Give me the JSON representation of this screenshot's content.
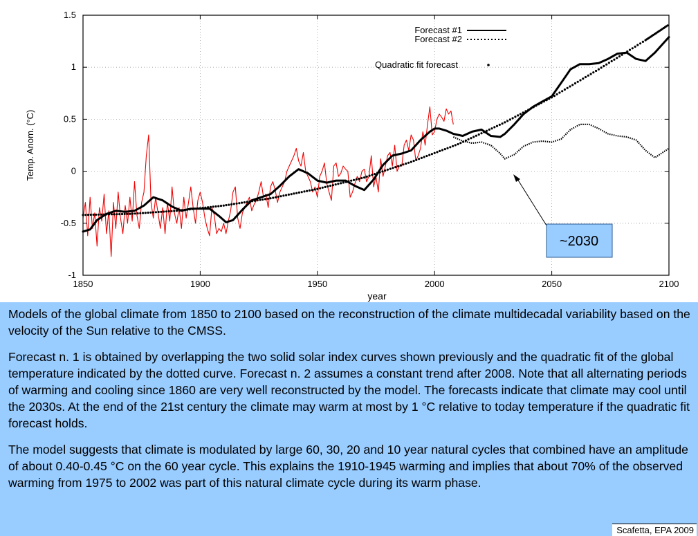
{
  "chart_data": {
    "type": "line",
    "xlabel": "year",
    "ylabel": "Temp. Anom. (°C)",
    "xlim": [
      1850,
      2100
    ],
    "ylim": [
      -1,
      1.5
    ],
    "xticks": [
      1850,
      1900,
      1950,
      2000,
      2050,
      2100
    ],
    "yticks": [
      -1,
      -0.5,
      0,
      0.5,
      1,
      1.5
    ],
    "grid": true,
    "legend_position": "top-right",
    "legend": [
      "Forecast #1",
      "Forecast #2",
      "Quadratic fit forecast"
    ],
    "series": [
      {
        "name": "Forecast #1",
        "style": "solid",
        "x": [
          1850,
          1853,
          1856,
          1860,
          1864,
          1868,
          1872,
          1876,
          1880,
          1884,
          1888,
          1892,
          1896,
          1900,
          1904,
          1908,
          1911,
          1914,
          1918,
          1922,
          1926,
          1930,
          1934,
          1938,
          1942,
          1946,
          1950,
          1954,
          1958,
          1962,
          1966,
          1970,
          1974,
          1978,
          1982,
          1986,
          1990,
          1994,
          1998,
          2000,
          2002,
          2005,
          2008,
          2012,
          2016,
          2020,
          2024,
          2028,
          2030,
          2034,
          2038,
          2042,
          2046,
          2050,
          2054,
          2058,
          2062,
          2066,
          2070,
          2074,
          2078,
          2082,
          2086,
          2090,
          2094,
          2098,
          2100
        ],
        "y": [
          -0.58,
          -0.56,
          -0.47,
          -0.41,
          -0.38,
          -0.39,
          -0.38,
          -0.33,
          -0.25,
          -0.28,
          -0.34,
          -0.38,
          -0.36,
          -0.36,
          -0.36,
          -0.43,
          -0.49,
          -0.47,
          -0.37,
          -0.28,
          -0.25,
          -0.22,
          -0.14,
          -0.05,
          0.02,
          -0.02,
          -0.09,
          -0.11,
          -0.09,
          -0.09,
          -0.14,
          -0.18,
          -0.08,
          0.06,
          0.15,
          0.17,
          0.2,
          0.3,
          0.38,
          0.41,
          0.41,
          0.39,
          0.36,
          0.34,
          0.38,
          0.4,
          0.34,
          0.33,
          0.36,
          0.45,
          0.55,
          0.62,
          0.67,
          0.72,
          0.85,
          0.98,
          1.03,
          1.03,
          1.04,
          1.08,
          1.13,
          1.14,
          1.08,
          1.06,
          1.14,
          1.24,
          1.29
        ]
      },
      {
        "name": "Forecast #2",
        "style": "dotted",
        "x": [
          2008,
          2012,
          2016,
          2020,
          2024,
          2028,
          2030,
          2034,
          2038,
          2042,
          2046,
          2050,
          2054,
          2058,
          2062,
          2066,
          2070,
          2074,
          2078,
          2082,
          2086,
          2090,
          2094,
          2098,
          2100
        ],
        "y": [
          0.33,
          0.29,
          0.27,
          0.28,
          0.25,
          0.17,
          0.12,
          0.16,
          0.24,
          0.28,
          0.29,
          0.28,
          0.31,
          0.4,
          0.45,
          0.45,
          0.41,
          0.36,
          0.34,
          0.33,
          0.3,
          0.2,
          0.13,
          0.19,
          0.22
        ]
      },
      {
        "name": "Quadratic fit forecast",
        "style": "dots",
        "x": [
          1850,
          1870,
          1890,
          1910,
          1930,
          1950,
          1970,
          1990,
          2010,
          2030,
          2050,
          2070,
          2090,
          2100
        ],
        "y": [
          -0.42,
          -0.41,
          -0.38,
          -0.33,
          -0.26,
          -0.17,
          -0.06,
          0.09,
          0.26,
          0.47,
          0.71,
          0.98,
          1.26,
          1.41
        ]
      },
      {
        "name": "",
        "style": "observed",
        "color": "#ee0000",
        "x": [
          1850,
          1851,
          1852,
          1853,
          1854,
          1855,
          1856,
          1857,
          1858,
          1859,
          1860,
          1861,
          1862,
          1863,
          1864,
          1865,
          1866,
          1867,
          1868,
          1869,
          1870,
          1871,
          1872,
          1873,
          1874,
          1875,
          1876,
          1877,
          1878,
          1879,
          1880,
          1881,
          1882,
          1883,
          1884,
          1885,
          1886,
          1887,
          1888,
          1889,
          1890,
          1891,
          1892,
          1893,
          1894,
          1895,
          1896,
          1897,
          1898,
          1899,
          1900,
          1901,
          1902,
          1903,
          1904,
          1905,
          1906,
          1907,
          1908,
          1909,
          1910,
          1911,
          1912,
          1913,
          1914,
          1915,
          1916,
          1917,
          1918,
          1919,
          1920,
          1921,
          1922,
          1923,
          1924,
          1925,
          1926,
          1927,
          1928,
          1929,
          1930,
          1931,
          1932,
          1933,
          1934,
          1935,
          1936,
          1937,
          1938,
          1939,
          1940,
          1941,
          1942,
          1943,
          1944,
          1945,
          1946,
          1947,
          1948,
          1949,
          1950,
          1951,
          1952,
          1953,
          1954,
          1955,
          1956,
          1957,
          1958,
          1959,
          1960,
          1961,
          1962,
          1963,
          1964,
          1965,
          1966,
          1967,
          1968,
          1969,
          1970,
          1971,
          1972,
          1973,
          1974,
          1975,
          1976,
          1977,
          1978,
          1979,
          1980,
          1981,
          1982,
          1983,
          1984,
          1985,
          1986,
          1987,
          1988,
          1989,
          1990,
          1991,
          1992,
          1993,
          1994,
          1995,
          1996,
          1997,
          1998,
          1999,
          2000,
          2001,
          2002,
          2003,
          2004,
          2005,
          2006,
          2007,
          2008
        ],
        "y": [
          -0.45,
          -0.3,
          -0.62,
          -0.25,
          -0.55,
          -0.4,
          -0.72,
          -0.35,
          -0.48,
          -0.22,
          -0.6,
          -0.38,
          -0.82,
          -0.3,
          -0.55,
          -0.2,
          -0.45,
          -0.6,
          -0.33,
          -0.5,
          -0.25,
          -0.48,
          -0.1,
          -0.42,
          -0.55,
          -0.3,
          -0.2,
          0.15,
          0.35,
          -0.3,
          -0.45,
          -0.25,
          -0.4,
          -0.55,
          -0.35,
          -0.6,
          -0.3,
          -0.48,
          -0.15,
          -0.4,
          -0.5,
          -0.35,
          -0.55,
          -0.25,
          -0.45,
          -0.3,
          -0.15,
          -0.35,
          -0.5,
          -0.28,
          -0.2,
          -0.3,
          -0.45,
          -0.55,
          -0.62,
          -0.35,
          -0.42,
          -0.6,
          -0.55,
          -0.58,
          -0.5,
          -0.6,
          -0.48,
          -0.38,
          -0.2,
          -0.15,
          -0.45,
          -0.55,
          -0.4,
          -0.35,
          -0.3,
          -0.25,
          -0.38,
          -0.32,
          -0.28,
          -0.2,
          -0.1,
          -0.25,
          -0.22,
          -0.35,
          -0.15,
          -0.1,
          -0.18,
          -0.3,
          -0.2,
          -0.15,
          -0.1,
          0.0,
          0.05,
          0.1,
          0.15,
          0.22,
          0.1,
          0.05,
          0.18,
          0.0,
          -0.05,
          -0.1,
          -0.2,
          -0.15,
          -0.25,
          -0.05,
          0.0,
          0.08,
          -0.12,
          -0.2,
          -0.28,
          0.05,
          0.08,
          -0.05,
          -0.02,
          0.05,
          0.02,
          0.0,
          -0.25,
          -0.2,
          -0.12,
          -0.05,
          -0.1,
          0.0,
          0.02,
          -0.1,
          -0.05,
          0.15,
          -0.15,
          -0.05,
          -0.2,
          0.12,
          -0.05,
          0.05,
          0.15,
          0.18,
          0.05,
          0.25,
          0.0,
          0.05,
          0.05,
          0.25,
          0.3,
          0.2,
          0.35,
          0.3,
          0.1,
          0.15,
          0.22,
          0.38,
          0.25,
          0.45,
          0.62,
          0.35,
          0.38,
          0.5,
          0.55,
          0.52,
          0.48,
          0.6,
          0.55,
          0.58,
          0.45
        ]
      }
    ],
    "annotations": [
      {
        "text": "~2030",
        "points_to": {
          "x": 2030,
          "y": -0.02
        }
      }
    ]
  },
  "caption": {
    "paragraphs": [
      "Models of the global climate from 1850 to 2100 based on the reconstruction of the climate multidecadal variability based on the velocity of the Sun relative to the CMSS.",
      "Forecast n. 1 is obtained by overlapping the two solid solar index curves shown previously and the quadratic fit of the global temperature indicated by the dotted curve. Forecast n. 2 assumes a constant trend after 2008. Note that all alternating periods of warming and cooling since 1860 are very well reconstructed by the model. The forecasts indicate that climate may cool until the 2030s. At the end of the 21st century the climate may warm at most by 1 °C relative to today temperature if the quadratic fit forecast holds.",
      "The model suggests that climate is modulated by large 60, 30, 20 and 10 year natural cycles that combined have an amplitude of about 0.40-0.45  °C on the 60 year cycle. This explains the 1910-1945 warming and implies that about 70% of the observed warming from 1975 to 2002 was part of this natural climate cycle during its warm phase."
    ],
    "credit": "Scafetta, EPA 2009"
  }
}
